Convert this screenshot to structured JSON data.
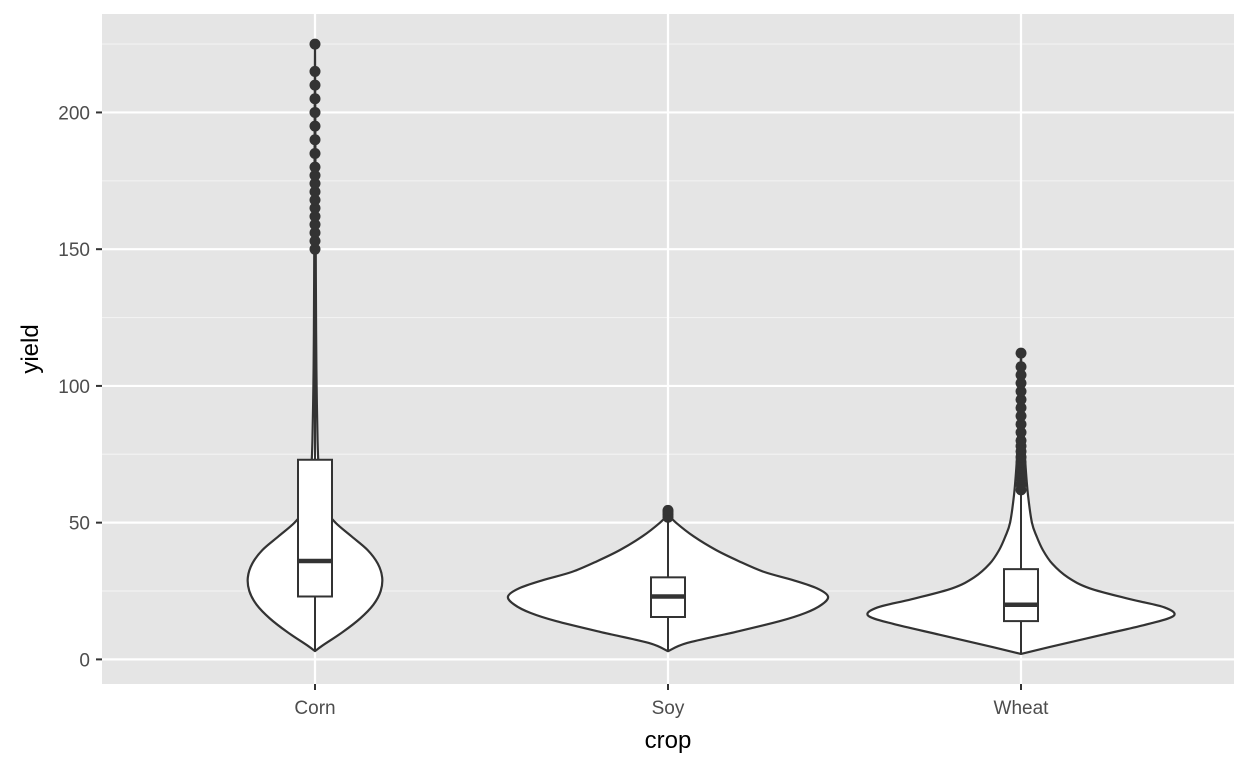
{
  "chart_data": {
    "type": "violin",
    "title": "",
    "xlabel": "crop",
    "ylabel": "yield",
    "ylim": [
      -9,
      236
    ],
    "grid": true,
    "y_ticks": [
      0,
      50,
      100,
      150,
      200
    ],
    "y_tick_labels": [
      "0",
      "50",
      "100",
      "150",
      "200"
    ],
    "categories": [
      "Corn",
      "Soy",
      "Wheat"
    ],
    "colors": {
      "panel": "#e5e5e5",
      "grid_major": "#ffffff",
      "grid_minor": "#f2f2f2",
      "violin_fill": "#ffffff",
      "stroke": "#333333",
      "tick_mark": "#333333"
    },
    "series": [
      {
        "category": "Corn",
        "violin": {
          "y": [
            3,
            5,
            10,
            15,
            20,
            25,
            30,
            35,
            40,
            45,
            50,
            55,
            60,
            70,
            80,
            100,
            120,
            150,
            180,
            200,
            225
          ],
          "density": [
            0.0,
            0.1,
            0.38,
            0.62,
            0.8,
            0.9,
            0.92,
            0.86,
            0.72,
            0.5,
            0.28,
            0.14,
            0.08,
            0.05,
            0.035,
            0.022,
            0.015,
            0.01,
            0.006,
            0.004,
            0.0
          ]
        },
        "box": {
          "min": 3,
          "q1": 23,
          "median": 36,
          "q3": 73,
          "whisker_high": 148
        },
        "outliers": [
          150,
          153,
          156,
          159,
          162,
          165,
          168,
          171,
          174,
          177,
          180,
          185,
          190,
          195,
          200,
          205,
          210,
          215,
          225
        ]
      },
      {
        "category": "Soy",
        "violin": {
          "y": [
            3,
            6,
            10,
            14,
            17,
            20,
            23,
            26,
            29,
            32,
            36,
            40,
            45,
            50,
            53
          ],
          "density": [
            0.0,
            0.12,
            0.42,
            0.7,
            0.86,
            0.96,
            1.0,
            0.93,
            0.78,
            0.6,
            0.44,
            0.3,
            0.16,
            0.05,
            0.0
          ]
        },
        "box": {
          "min": 3,
          "q1": 15.5,
          "median": 23,
          "q3": 30,
          "whisker_high": 52
        },
        "outliers": [
          52,
          53,
          54,
          54.5
        ]
      },
      {
        "category": "Wheat",
        "violin": {
          "y": [
            2,
            5,
            9,
            13,
            16,
            19,
            22,
            26,
            30,
            35,
            40,
            45,
            50,
            60,
            70,
            80,
            90,
            100,
            112
          ],
          "density": [
            0.0,
            0.22,
            0.52,
            0.82,
            0.98,
            0.92,
            0.7,
            0.44,
            0.3,
            0.2,
            0.14,
            0.1,
            0.07,
            0.045,
            0.03,
            0.02,
            0.012,
            0.006,
            0.0
          ]
        },
        "box": {
          "min": 2,
          "q1": 14,
          "median": 20,
          "q3": 33,
          "whisker_high": 61
        },
        "outliers": [
          62,
          64,
          66,
          68,
          70,
          72,
          74,
          76,
          78,
          80,
          83,
          86,
          89,
          92,
          95,
          98,
          101,
          104,
          107,
          112
        ]
      }
    ]
  }
}
